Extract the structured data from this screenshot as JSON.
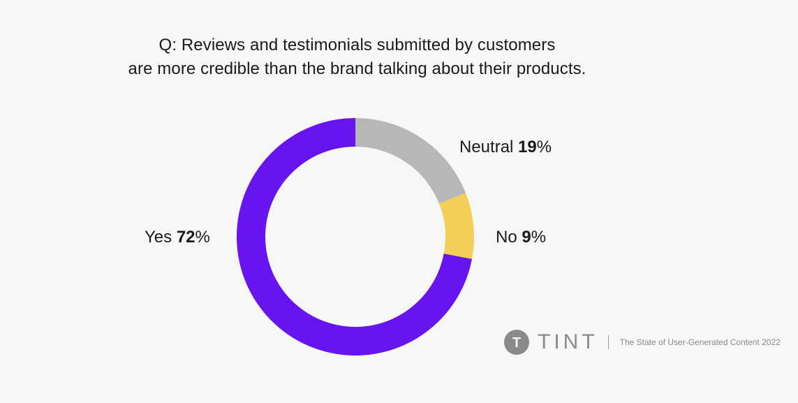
{
  "chart_data": {
    "type": "pie",
    "title_lines": [
      "Q: Reviews and testimonials submitted by customers",
      "are more credible than the brand talking about their products."
    ],
    "slices": [
      {
        "label": "Neutral",
        "value": 19,
        "display": "19",
        "color": "#b7b7b7"
      },
      {
        "label": "No",
        "value": 9,
        "display": "9",
        "color": "#f3cf5a"
      },
      {
        "label": "Yes",
        "value": 72,
        "display": "72",
        "color": "#6714ef"
      }
    ],
    "percent_sign": "%",
    "donut": true
  },
  "footer": {
    "brand": "TINT",
    "logo_letter": "T",
    "report": "The State of User-Generated Content 2022"
  },
  "colors": {
    "background": "#f7f7f7",
    "text": "#1a1a1a",
    "footer_text": "#8a8a8a",
    "logo_circle": "#8a8a8a"
  }
}
